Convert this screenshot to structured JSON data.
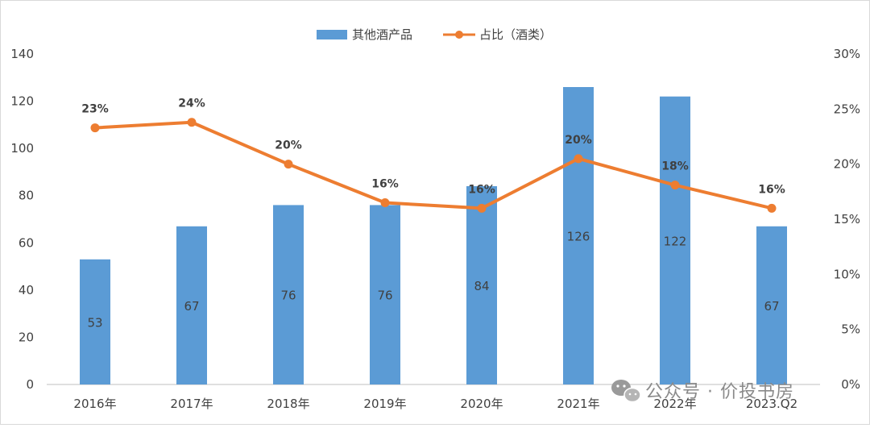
{
  "chart_data": {
    "type": "bar",
    "categories": [
      "2016年",
      "2017年",
      "2018年",
      "2019年",
      "2020年",
      "2021年",
      "2022年",
      "2023.Q2"
    ],
    "series": [
      {
        "name": "其他酒产品",
        "type": "bar",
        "axis": "left",
        "values": [
          53,
          67,
          76,
          76,
          84,
          126,
          122,
          67
        ],
        "value_labels": [
          "53",
          "67",
          "76",
          "76",
          "84",
          "126",
          "122",
          "67"
        ]
      },
      {
        "name": "占比（酒类）",
        "type": "line",
        "axis": "right",
        "values": [
          23.3,
          23.8,
          20.0,
          16.5,
          16.0,
          20.5,
          18.1,
          16.0
        ],
        "value_labels": [
          "23%",
          "24%",
          "20%",
          "16%",
          "16%",
          "20%",
          "18%",
          "16%"
        ]
      }
    ],
    "y_left": {
      "lim": [
        0,
        140
      ],
      "ticks": [
        "0",
        "20",
        "40",
        "60",
        "80",
        "100",
        "120",
        "140"
      ]
    },
    "y_right": {
      "lim": [
        0,
        30
      ],
      "ticks": [
        "0%",
        "5%",
        "10%",
        "15%",
        "20%",
        "25%",
        "30%"
      ]
    },
    "legend": {
      "position": "top-center"
    },
    "colors": {
      "bar": "#5B9BD5",
      "line": "#ED7D31"
    },
    "grid": false
  },
  "watermark": {
    "text": "公众号 · 价投书房",
    "icon": "wechat-icon"
  }
}
